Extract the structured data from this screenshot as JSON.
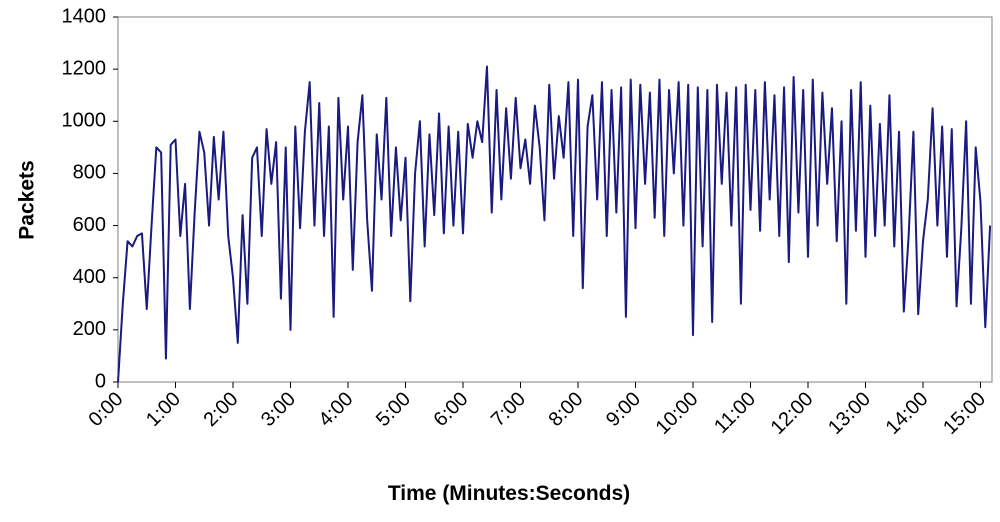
{
  "chart_data": {
    "type": "line",
    "xlabel": "Time (Minutes:Seconds)",
    "ylabel": "Packets",
    "x": [
      0,
      5,
      10,
      15,
      20,
      25,
      30,
      35,
      40,
      45,
      50,
      55,
      60,
      65,
      70,
      75,
      80,
      85,
      90,
      95,
      100,
      105,
      110,
      115,
      120,
      125,
      130,
      135,
      140,
      145,
      150,
      155,
      160,
      165,
      170,
      175,
      180,
      185,
      190,
      195,
      200,
      205,
      210,
      215,
      220,
      225,
      230,
      235,
      240,
      245,
      250,
      255,
      260,
      265,
      270,
      275,
      280,
      285,
      290,
      295,
      300,
      305,
      310,
      315,
      320,
      325,
      330,
      335,
      340,
      345,
      350,
      355,
      360,
      365,
      370,
      375,
      380,
      385,
      390,
      395,
      400,
      405,
      410,
      415,
      420,
      425,
      430,
      435,
      440,
      445,
      450,
      455,
      460,
      465,
      470,
      475,
      480,
      485,
      490,
      495,
      500,
      505,
      510,
      515,
      520,
      525,
      530,
      535,
      540,
      545,
      550,
      555,
      560,
      565,
      570,
      575,
      580,
      585,
      590,
      595,
      600,
      605,
      610,
      615,
      620,
      625,
      630,
      635,
      640,
      645,
      650,
      655,
      660,
      665,
      670,
      675,
      680,
      685,
      690,
      695,
      700,
      705,
      710,
      715,
      720,
      725,
      730,
      735,
      740,
      745,
      750,
      755,
      760,
      765,
      770,
      775,
      780,
      785,
      790,
      795,
      800,
      805,
      810,
      815,
      820,
      825,
      830,
      835,
      840,
      845,
      850,
      855,
      860,
      865,
      870,
      875,
      880,
      885,
      890,
      895,
      900,
      905,
      910
    ],
    "series": [
      {
        "name": "Packets",
        "color": "#1a1a80",
        "values": [
          0,
          300,
          540,
          520,
          560,
          570,
          280,
          600,
          900,
          880,
          90,
          910,
          930,
          560,
          760,
          280,
          650,
          960,
          880,
          600,
          940,
          700,
          960,
          560,
          400,
          150,
          640,
          300,
          860,
          900,
          560,
          970,
          760,
          920,
          320,
          900,
          200,
          980,
          590,
          960,
          1150,
          600,
          1070,
          560,
          980,
          250,
          1090,
          700,
          980,
          430,
          920,
          1100,
          620,
          350,
          950,
          700,
          1090,
          560,
          900,
          620,
          860,
          310,
          800,
          1000,
          520,
          950,
          640,
          1030,
          570,
          980,
          600,
          960,
          570,
          990,
          860,
          1000,
          920,
          1210,
          650,
          1120,
          700,
          1050,
          780,
          1090,
          820,
          930,
          760,
          1060,
          900,
          620,
          1140,
          780,
          1020,
          860,
          1150,
          560,
          1160,
          360,
          980,
          1100,
          700,
          1150,
          560,
          1120,
          650,
          1130,
          250,
          1160,
          590,
          1140,
          760,
          1110,
          630,
          1160,
          560,
          1120,
          800,
          1150,
          600,
          1140,
          180,
          1130,
          520,
          1120,
          230,
          1140,
          760,
          1110,
          600,
          1130,
          300,
          1140,
          660,
          1120,
          580,
          1150,
          700,
          1100,
          560,
          1130,
          460,
          1170,
          650,
          1120,
          480,
          1160,
          600,
          1110,
          760,
          1050,
          540,
          1000,
          300,
          1120,
          580,
          1150,
          480,
          1060,
          560,
          990,
          600,
          1100,
          520,
          960,
          270,
          560,
          960,
          260,
          540,
          700,
          1050,
          600,
          980,
          480,
          970,
          290,
          590,
          1000,
          300,
          900,
          690,
          210,
          600
        ]
      }
    ],
    "xlim": [
      0,
      912
    ],
    "xticks": [
      {
        "value": 0,
        "label": "0:00"
      },
      {
        "value": 60,
        "label": "1:00"
      },
      {
        "value": 120,
        "label": "2:00"
      },
      {
        "value": 180,
        "label": "3:00"
      },
      {
        "value": 240,
        "label": "4:00"
      },
      {
        "value": 300,
        "label": "5:00"
      },
      {
        "value": 360,
        "label": "6:00"
      },
      {
        "value": 420,
        "label": "7:00"
      },
      {
        "value": 480,
        "label": "8:00"
      },
      {
        "value": 540,
        "label": "9:00"
      },
      {
        "value": 600,
        "label": "10:00"
      },
      {
        "value": 660,
        "label": "11:00"
      },
      {
        "value": 720,
        "label": "12:00"
      },
      {
        "value": 780,
        "label": "13:00"
      },
      {
        "value": 840,
        "label": "14:00"
      },
      {
        "value": 900,
        "label": "15:00"
      }
    ],
    "ylim": [
      0,
      1400
    ],
    "yticks": [
      0,
      200,
      400,
      600,
      800,
      1000,
      1200,
      1400
    ]
  }
}
